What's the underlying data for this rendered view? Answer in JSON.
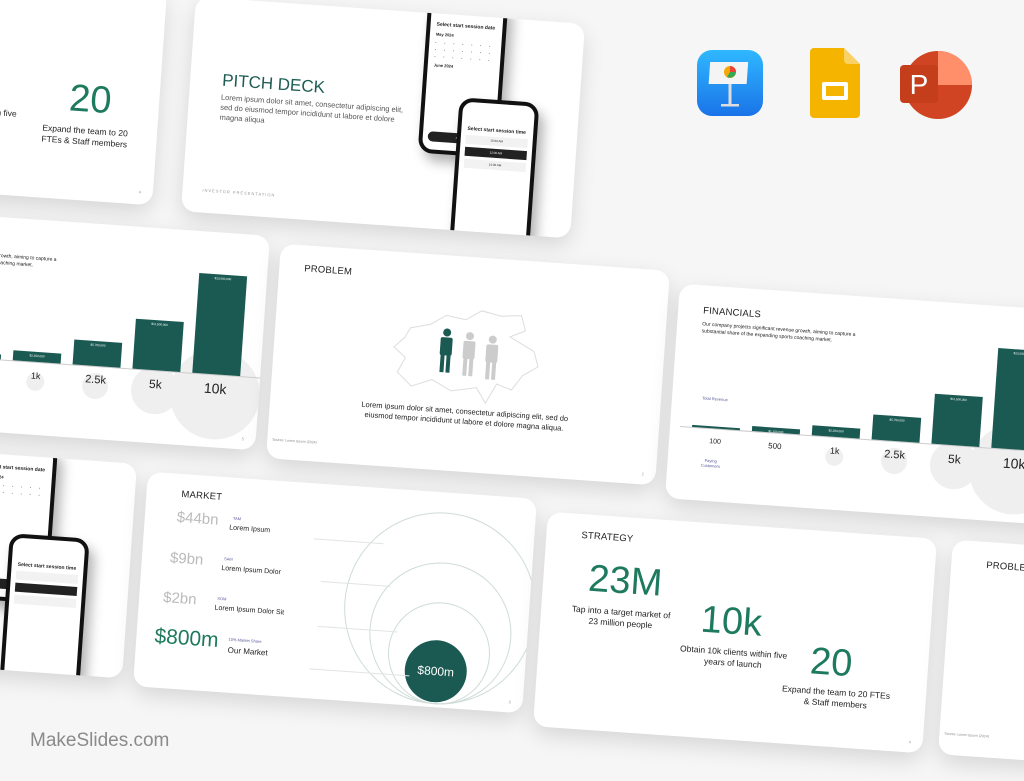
{
  "brand": {
    "watermark": "MakeSlides.com"
  },
  "app_icons": [
    {
      "name": "keynote-icon",
      "color": "#1e90ff"
    },
    {
      "name": "google-slides-icon",
      "color": "#f4b400"
    },
    {
      "name": "powerpoint-icon",
      "color": "#c43e1c"
    }
  ],
  "colors": {
    "accent_green": "#1e7a5e",
    "bar_green": "#1b5a52"
  },
  "strategy_partial": {
    "stats": [
      {
        "value": "10k",
        "caption": "Obtain 10k clients within five years of launch"
      },
      {
        "value": "20",
        "caption": "Expand the team to 20 FTEs & Staff members"
      }
    ],
    "page": "4"
  },
  "pitch_deck": {
    "title": "PITCH DECK",
    "body": "Lorem ipsum dolor sit amet, consectetur adipiscing elit, sed do eiusmod tempor incididunt ut labore et dolore magna aliqua",
    "footer": "INVESTOR PRESENTATION",
    "phone1": {
      "heading": "Select start session date",
      "month1": "May 2024",
      "month2": "June 2024",
      "button": "Next"
    },
    "phone2": {
      "heading": "Select start session time",
      "options": [
        "10:00 AM",
        "12:00 AM",
        "14:00 AM"
      ]
    }
  },
  "financials": {
    "title": "FINANCIALS",
    "description": "Our company projects significant revenue growth, aiming to capture a substantial share of the expanding sports coaching market.",
    "revenue_label": "Total Revenue",
    "customers_label": "Paying Customers",
    "page": "5"
  },
  "chart_data": {
    "type": "bar",
    "categories": [
      "100",
      "500",
      "1k",
      "2.5k",
      "5k",
      "10k"
    ],
    "values": [
      230000,
      1150000,
      2300000,
      5750000,
      11500000,
      23000000
    ],
    "value_labels": [
      "$230,000",
      "$1,150,000",
      "$2,300,000",
      "$5,750,000",
      "$11,500,000",
      "$23,000,000"
    ],
    "xlabel": "Paying Customers",
    "ylabel": "Total Revenue"
  },
  "problem": {
    "title": "PROBLEM",
    "body": "Lorem ipsum dolor sit amet, consectetur adipiscing elit, sed do eiusmod tempor incididunt ut labore et dolore magna aliqua.",
    "source": "Source: Lorem Ipsum (2024)",
    "page": "2"
  },
  "market": {
    "title": "MARKET",
    "rows": [
      {
        "value": "$44bn",
        "tag": "TAM",
        "label": "Lorem Ipsum"
      },
      {
        "value": "$9bn",
        "tag": "SAM",
        "label": "Lorem Ipsum Dolor"
      },
      {
        "value": "$2bn",
        "tag": "SOM",
        "label": "Lorem Ipsum Dolor Sit"
      },
      {
        "value": "$800m",
        "tag": "10% Market Share",
        "label": "Our Market"
      }
    ],
    "bubble": "$800m",
    "page": "3"
  },
  "strategy": {
    "title": "STRATEGY",
    "stats": [
      {
        "value": "23M",
        "caption": "Tap into a target market of 23 million people"
      },
      {
        "value": "10k",
        "caption": "Obtain 10k clients within five years of launch"
      },
      {
        "value": "20",
        "caption": "Expand the team to 20 FTEs & Staff members"
      }
    ],
    "page": "4"
  },
  "problem_partial": {
    "title": "PROBLEM",
    "source": "Source: Lorem Ipsum (2024)"
  }
}
